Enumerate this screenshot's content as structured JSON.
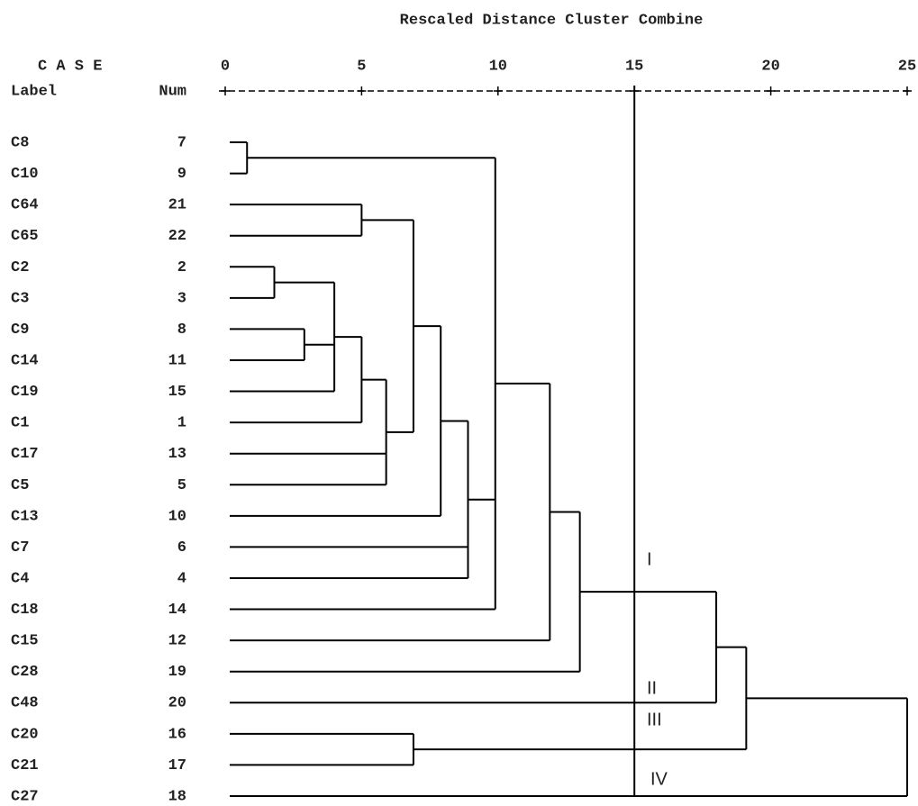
{
  "chart_data": {
    "type": "dendrogram",
    "title": "Rescaled Distance Cluster Combine",
    "case_header": "C A S E",
    "label_header": "Label",
    "num_header": "Num",
    "xlim": [
      0,
      25
    ],
    "xticks": [
      0,
      5,
      10,
      15,
      20,
      25
    ],
    "cut_line": 15,
    "cluster_labels": [
      "I",
      "II",
      "III",
      "IV"
    ],
    "tree": {
      "height": 25,
      "children": [
        {
          "height": 19.1,
          "children": [
            {
              "height": 18.0,
              "children": [
                {
                  "height": 13.0,
                  "children": [
                    {
                      "height": 11.9,
                      "children": [
                        {
                          "height": 9.9,
                          "children": [
                            {
                              "height": 0.8,
                              "children": [
                                {
                                  "label": "C8",
                                  "num": 7
                                },
                                {
                                  "label": "C10",
                                  "num": 9
                                }
                              ]
                            },
                            {
                              "height": 8.9,
                              "children": [
                                {
                                  "height": 7.9,
                                  "children": [
                                    {
                                      "height": 6.9,
                                      "children": [
                                        {
                                          "height": 5.0,
                                          "children": [
                                            {
                                              "label": "C64",
                                              "num": 21
                                            },
                                            {
                                              "label": "C65",
                                              "num": 22
                                            }
                                          ]
                                        },
                                        {
                                          "height": 5.9,
                                          "children": [
                                            {
                                              "height": 5.0,
                                              "children": [
                                                {
                                                  "height": 4.0,
                                                  "children": [
                                                    {
                                                      "height": 1.8,
                                                      "children": [
                                                        {
                                                          "label": "C2",
                                                          "num": 2
                                                        },
                                                        {
                                                          "label": "C3",
                                                          "num": 3
                                                        }
                                                      ]
                                                    },
                                                    {
                                                      "height": 2.9,
                                                      "children": [
                                                        {
                                                          "label": "C9",
                                                          "num": 8
                                                        },
                                                        {
                                                          "label": "C14",
                                                          "num": 11
                                                        }
                                                      ]
                                                    },
                                                    {
                                                      "label": "C19",
                                                      "num": 15
                                                    }
                                                  ]
                                                },
                                                {
                                                  "label": "C1",
                                                  "num": 1
                                                }
                                              ]
                                            },
                                            {
                                              "label": "C17",
                                              "num": 13
                                            },
                                            {
                                              "label": "C5",
                                              "num": 5
                                            }
                                          ]
                                        }
                                      ]
                                    },
                                    {
                                      "label": "C13",
                                      "num": 10
                                    }
                                  ]
                                },
                                {
                                  "label": "C7",
                                  "num": 6
                                },
                                {
                                  "label": "C4",
                                  "num": 4
                                }
                              ]
                            },
                            {
                              "label": "C18",
                              "num": 14
                            }
                          ]
                        },
                        {
                          "label": "C15",
                          "num": 12
                        }
                      ]
                    },
                    {
                      "label": "C28",
                      "num": 19
                    }
                  ]
                },
                {
                  "label": "C48",
                  "num": 20
                }
              ]
            },
            {
              "height": 6.9,
              "children": [
                {
                  "label": "C20",
                  "num": 16
                },
                {
                  "label": "C21",
                  "num": 17
                }
              ]
            }
          ]
        },
        {
          "label": "C27",
          "num": 18
        }
      ]
    }
  }
}
